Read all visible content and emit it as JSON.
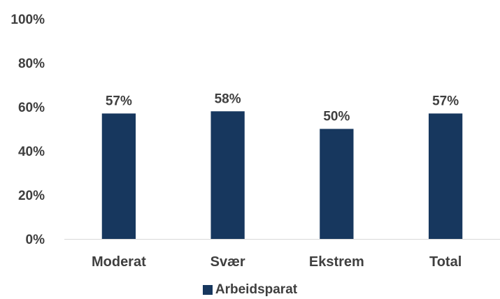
{
  "chart_data": {
    "type": "bar",
    "categories": [
      "Moderat",
      "Svær",
      "Ekstrem",
      "Total"
    ],
    "series": [
      {
        "name": "Arbeidsparat",
        "values": [
          57,
          58,
          50,
          57
        ],
        "data_labels": [
          "57%",
          "58%",
          "50%",
          "57%"
        ],
        "color": "#17375e"
      }
    ],
    "ylim": [
      0,
      100
    ],
    "yticks": [
      0,
      20,
      40,
      60,
      80,
      100
    ],
    "ytick_labels": [
      "0%",
      "20%",
      "40%",
      "60%",
      "80%",
      "100%"
    ],
    "grid": false,
    "legend_position": "bottom",
    "title": "",
    "xlabel": "",
    "ylabel": ""
  }
}
